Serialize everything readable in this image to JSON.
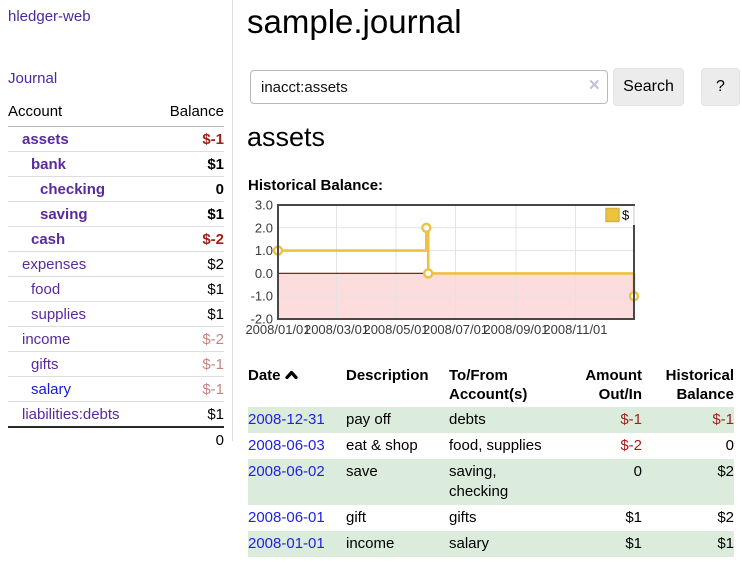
{
  "sidebar": {
    "brand": "hledger-web",
    "journal_link": "Journal",
    "accounts": {
      "headers": {
        "account": "Account",
        "balance": "Balance"
      },
      "rows": [
        {
          "name": "assets",
          "balance": "$-1"
        },
        {
          "name": "bank",
          "balance": "$1"
        },
        {
          "name": "checking",
          "balance": "0"
        },
        {
          "name": "saving",
          "balance": "$1"
        },
        {
          "name": "cash",
          "balance": "$-2"
        },
        {
          "name": "expenses",
          "balance": "$2"
        },
        {
          "name": "food",
          "balance": "$1"
        },
        {
          "name": "supplies",
          "balance": "$1"
        },
        {
          "name": "income",
          "balance": "$-2"
        },
        {
          "name": "gifts",
          "balance": "$-1"
        },
        {
          "name": "salary",
          "balance": "$-1"
        },
        {
          "name": "liabilities:debts",
          "balance": "$1"
        }
      ],
      "total": "0"
    }
  },
  "main": {
    "title": "sample.journal",
    "search": {
      "query": "inacct:assets",
      "clear_icon": "✕",
      "button": "Search",
      "help_button": "?"
    },
    "section_title": "assets",
    "chart_label": "Historical Balance:",
    "transactions": {
      "headers": {
        "date": "Date",
        "description": "Description",
        "accounts": "To/From Account(s)",
        "amount": "Amount Out/In",
        "balance": "Historical Balance"
      },
      "rows": [
        {
          "date": "2008-12-31",
          "description": "pay off",
          "accounts": "debts",
          "amount": "$-1",
          "balance": "$-1"
        },
        {
          "date": "2008-06-03",
          "description": "eat & shop",
          "accounts": "food, supplies",
          "amount": "$-2",
          "balance": "0"
        },
        {
          "date": "2008-06-02",
          "description": "save",
          "accounts": "saving, checking",
          "amount": "0",
          "balance": "$2"
        },
        {
          "date": "2008-06-01",
          "description": "gift",
          "accounts": "gifts",
          "amount": "$1",
          "balance": "$2"
        },
        {
          "date": "2008-01-01",
          "description": "income",
          "accounts": "salary",
          "amount": "$1",
          "balance": "$1"
        }
      ]
    }
  },
  "chart_data": {
    "type": "line",
    "title": "Historical Balance",
    "step": true,
    "series": [
      {
        "name": "$",
        "color": "#edc240",
        "points": [
          [
            "2008-01-01",
            1
          ],
          [
            "2008-06-01",
            2
          ],
          [
            "2008-06-03",
            0
          ],
          [
            "2008-12-31",
            -1
          ]
        ]
      }
    ],
    "x_range": [
      "2008-01-01",
      "2008-12-31"
    ],
    "ylim": [
      -2,
      3
    ],
    "yticks": [
      3.0,
      2.0,
      1.0,
      0.0,
      -1.0,
      -2.0
    ],
    "xtick_dates": [
      "2008-01-01",
      "2008-03-01",
      "2008-05-01",
      "2008-07-01",
      "2008-09-01",
      "2008-11-01"
    ],
    "xtick_labels": [
      "2008/01/01",
      "2008/03/01",
      "2008/05/01",
      "2008/07/01",
      "2008/09/01",
      "2008/11/01"
    ],
    "legend_position": "top-right",
    "grid": true,
    "colors": {
      "gridline": "#e3e3e3",
      "plot_border": "#474747",
      "negative_region": "#fcdcdc",
      "zero_line": "#8b1e1e",
      "tick_label": "#3a3a3a"
    }
  }
}
